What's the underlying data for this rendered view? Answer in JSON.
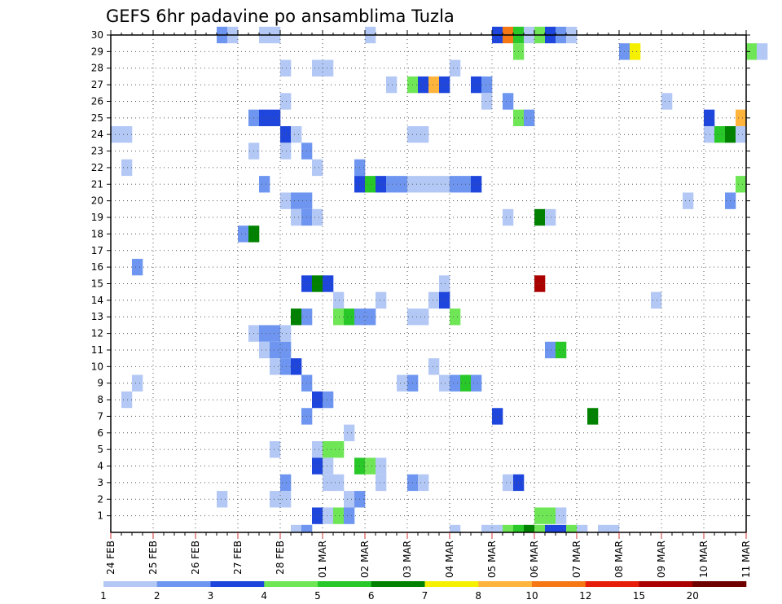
{
  "chart_data": {
    "type": "heatmap",
    "title": "GEFS 6hr padavine po ansamblima Tuzla",
    "xlabel": "",
    "ylabel": "",
    "x_start": "24 FEB 00Z",
    "x_step_hours": 6,
    "x_end": "11 MAR 00Z",
    "x_tick_labels": [
      "24 FEB",
      "25 FEB",
      "26 FEB",
      "27 FEB",
      "28 FEB",
      "01 MAR",
      "02 MAR",
      "03 MAR",
      "04 MAR",
      "05 MAR",
      "06 MAR",
      "07 MAR",
      "08 MAR",
      "09 MAR",
      "10 MAR",
      "11 MAR"
    ],
    "y_tick_labels": [
      "1",
      "2",
      "3",
      "4",
      "5",
      "6",
      "7",
      "8",
      "9",
      "10",
      "11",
      "12",
      "13",
      "14",
      "15",
      "16",
      "17",
      "18",
      "19",
      "20",
      "21",
      "22",
      "23",
      "24",
      "25",
      "26",
      "27",
      "28",
      "29",
      "30"
    ],
    "ylim": [
      0,
      30
    ],
    "grid": true,
    "colorbar": {
      "levels": [
        "1",
        "2",
        "3",
        "4",
        "5",
        "6",
        "7",
        "8",
        "10",
        "12",
        "15",
        "20"
      ],
      "colors": [
        "#b3c8f5",
        "#6e96f0",
        "#1e46dc",
        "#6ee656",
        "#28c828",
        "#008200",
        "#f5f000",
        "#ffb43c",
        "#f57814",
        "#e61e0a",
        "#aa0000",
        "#6e0000"
      ]
    },
    "cells": [
      {
        "member": 30,
        "times": [
          [
            14,
            1
          ],
          [
            10,
            2
          ],
          [
            11,
            1
          ],
          [
            15,
            1
          ]
        ]
      },
      {
        "member": 30,
        "times": [
          [
            24,
            1
          ]
        ]
      },
      {
        "member": 30,
        "times": [
          [
            36,
            3
          ],
          [
            37,
            9
          ],
          [
            38,
            5
          ],
          [
            39,
            1
          ],
          [
            40,
            4
          ],
          [
            41,
            3
          ],
          [
            42,
            2
          ],
          [
            43,
            1
          ]
        ]
      },
      {
        "member": 29,
        "times": [
          [
            38,
            4
          ],
          [
            48,
            2
          ],
          [
            49,
            7
          ],
          [
            60,
            4
          ],
          [
            61,
            1
          ],
          [
            65,
            5
          ],
          [
            66,
            3
          ]
        ]
      },
      {
        "member": 28,
        "times": [
          [
            16,
            1
          ],
          [
            19,
            1
          ],
          [
            20,
            1
          ],
          [
            32,
            1
          ]
        ]
      },
      {
        "member": 27,
        "times": [
          [
            26,
            1
          ],
          [
            28,
            4
          ],
          [
            29,
            3
          ],
          [
            30,
            8
          ],
          [
            31,
            3
          ],
          [
            34,
            3
          ],
          [
            35,
            2
          ]
        ]
      },
      {
        "member": 26,
        "times": [
          [
            16,
            1
          ],
          [
            35,
            1
          ],
          [
            37,
            2
          ],
          [
            52,
            1
          ]
        ]
      },
      {
        "member": 25,
        "times": [
          [
            13,
            2
          ],
          [
            14,
            3
          ],
          [
            15,
            3
          ],
          [
            38,
            4
          ],
          [
            39,
            2
          ],
          [
            56,
            3
          ],
          [
            59,
            8
          ]
        ]
      },
      {
        "member": 24,
        "times": [
          [
            0,
            1
          ],
          [
            1,
            1
          ],
          [
            16,
            3
          ],
          [
            17,
            1
          ],
          [
            28,
            1
          ],
          [
            29,
            1
          ],
          [
            56,
            1
          ],
          [
            57,
            5
          ],
          [
            58,
            6
          ],
          [
            59,
            1
          ]
        ]
      },
      {
        "member": 23,
        "times": [
          [
            13,
            1
          ],
          [
            16,
            1
          ],
          [
            18,
            2
          ]
        ]
      },
      {
        "member": 22,
        "times": [
          [
            1,
            1
          ],
          [
            19,
            1
          ],
          [
            23,
            2
          ]
        ]
      },
      {
        "member": 21,
        "times": [
          [
            14,
            2
          ],
          [
            23,
            3
          ],
          [
            24,
            5
          ],
          [
            25,
            3
          ],
          [
            26,
            2
          ],
          [
            27,
            2
          ],
          [
            28,
            1
          ],
          [
            29,
            1
          ],
          [
            30,
            1
          ],
          [
            31,
            1
          ],
          [
            32,
            2
          ],
          [
            33,
            2
          ],
          [
            34,
            3
          ],
          [
            59,
            4
          ]
        ]
      },
      {
        "member": 20,
        "times": [
          [
            16,
            1
          ],
          [
            17,
            2
          ],
          [
            18,
            2
          ],
          [
            54,
            1
          ],
          [
            58,
            2
          ]
        ]
      },
      {
        "member": 19,
        "times": [
          [
            17,
            1
          ],
          [
            18,
            2
          ],
          [
            19,
            1
          ],
          [
            37,
            1
          ],
          [
            40,
            6
          ],
          [
            41,
            1
          ]
        ]
      },
      {
        "member": 18,
        "times": [
          [
            12,
            2
          ],
          [
            13,
            6
          ]
        ]
      },
      {
        "member": 16,
        "times": [
          [
            2,
            2
          ]
        ]
      },
      {
        "member": 15,
        "times": [
          [
            18,
            3
          ],
          [
            19,
            6
          ],
          [
            20,
            3
          ],
          [
            31,
            1
          ],
          [
            40,
            11
          ]
        ]
      },
      {
        "member": 14,
        "times": [
          [
            21,
            1
          ],
          [
            25,
            1
          ],
          [
            30,
            1
          ],
          [
            31,
            3
          ],
          [
            51,
            1
          ]
        ]
      },
      {
        "member": 13,
        "times": [
          [
            17,
            6
          ],
          [
            18,
            2
          ],
          [
            21,
            4
          ],
          [
            22,
            5
          ],
          [
            23,
            2
          ],
          [
            24,
            2
          ],
          [
            28,
            1
          ],
          [
            29,
            1
          ],
          [
            32,
            4
          ]
        ]
      },
      {
        "member": 12,
        "times": [
          [
            13,
            1
          ],
          [
            14,
            2
          ],
          [
            15,
            2
          ],
          [
            16,
            1
          ]
        ]
      },
      {
        "member": 11,
        "times": [
          [
            14,
            1
          ],
          [
            15,
            2
          ],
          [
            16,
            2
          ],
          [
            41,
            2
          ],
          [
            42,
            5
          ]
        ]
      },
      {
        "member": 10,
        "times": [
          [
            15,
            1
          ],
          [
            16,
            2
          ],
          [
            17,
            3
          ],
          [
            30,
            1
          ]
        ]
      },
      {
        "member": 9,
        "times": [
          [
            2,
            1
          ],
          [
            18,
            2
          ],
          [
            27,
            1
          ],
          [
            28,
            2
          ],
          [
            31,
            1
          ],
          [
            32,
            2
          ],
          [
            33,
            5
          ],
          [
            34,
            2
          ]
        ]
      },
      {
        "member": 8,
        "times": [
          [
            1,
            1
          ],
          [
            19,
            3
          ],
          [
            20,
            2
          ]
        ]
      },
      {
        "member": 7,
        "times": [
          [
            18,
            2
          ],
          [
            36,
            3
          ],
          [
            45,
            6
          ]
        ]
      },
      {
        "member": 6,
        "times": [
          [
            22,
            1
          ]
        ]
      },
      {
        "member": 5,
        "times": [
          [
            15,
            1
          ],
          [
            19,
            1
          ],
          [
            20,
            4
          ],
          [
            21,
            4
          ]
        ]
      },
      {
        "member": 4,
        "times": [
          [
            19,
            3
          ],
          [
            20,
            1
          ],
          [
            23,
            5
          ],
          [
            24,
            4
          ],
          [
            25,
            1
          ]
        ]
      },
      {
        "member": 3,
        "times": [
          [
            16,
            2
          ],
          [
            20,
            1
          ],
          [
            21,
            1
          ],
          [
            25,
            1
          ],
          [
            28,
            2
          ],
          [
            29,
            1
          ],
          [
            37,
            1
          ],
          [
            38,
            3
          ]
        ]
      },
      {
        "member": 2,
        "times": [
          [
            10,
            1
          ],
          [
            15,
            1
          ],
          [
            16,
            1
          ],
          [
            22,
            1
          ],
          [
            23,
            2
          ]
        ]
      },
      {
        "member": 1,
        "times": [
          [
            19,
            3
          ],
          [
            20,
            1
          ],
          [
            21,
            4
          ],
          [
            22,
            2
          ],
          [
            40,
            4
          ],
          [
            41,
            4
          ],
          [
            42,
            1
          ]
        ]
      },
      {
        "member": 0,
        "times": [
          [
            17,
            1
          ],
          [
            18,
            2
          ],
          [
            32,
            1
          ],
          [
            35,
            1
          ],
          [
            36,
            1
          ],
          [
            37,
            4
          ],
          [
            38,
            5
          ],
          [
            39,
            6
          ],
          [
            40,
            4
          ],
          [
            41,
            3
          ],
          [
            42,
            3
          ],
          [
            43,
            4
          ],
          [
            44,
            1
          ],
          [
            46,
            1
          ],
          [
            47,
            1
          ]
        ]
      }
    ]
  }
}
